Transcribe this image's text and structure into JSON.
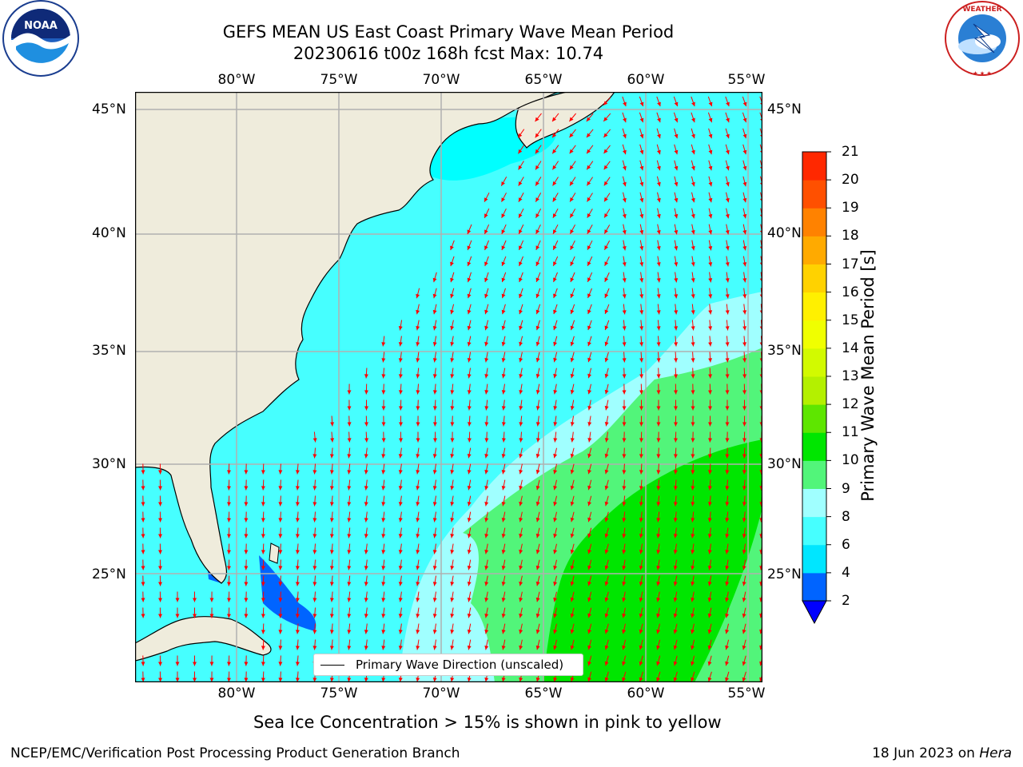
{
  "title": {
    "line1": "GEFS MEAN US East Coast Primary Wave Mean Period",
    "line2": "20230616 t00z 168h fcst   Max: 10.74"
  },
  "logos": {
    "left": "NOAA",
    "right": "NATIONAL WEATHER SERVICE"
  },
  "map": {
    "lon_labels": [
      "80°W",
      "75°W",
      "70°W",
      "65°W",
      "60°W",
      "55°W"
    ],
    "lat_labels": [
      "45°N",
      "40°N",
      "35°N",
      "30°N",
      "25°N"
    ],
    "legend_text": "Primary Wave Direction (unscaled)",
    "land_color": "#efecdc",
    "arrow_color": "#ff0000",
    "grid_color": "#b0b0b0"
  },
  "colorbar": {
    "label": "Primary Wave Mean Period [s]",
    "ticks": [
      "2",
      "4",
      "6",
      "8",
      "9",
      "10",
      "11",
      "12",
      "13",
      "14",
      "15",
      "16",
      "17",
      "18",
      "19",
      "20",
      "21"
    ],
    "colors": [
      "#0064ff",
      "#00e6ff",
      "#46ffff",
      "#a0ffff",
      "#52f57a",
      "#00e600",
      "#5ee600",
      "#b4f000",
      "#d2fa00",
      "#f0ff00",
      "#fff000",
      "#ffd200",
      "#ffaa00",
      "#ff8200",
      "#ff5000",
      "#ff2800",
      "#ff0000"
    ],
    "extend_color": "#0000ff"
  },
  "subtitle": "Sea Ice Concentration > 15% is shown in pink to yellow",
  "footer": {
    "left": "NCEP/EMC/Verification Post Processing Product Generation Branch",
    "date": "18 Jun 2023 on",
    "machine": "Hera"
  }
}
